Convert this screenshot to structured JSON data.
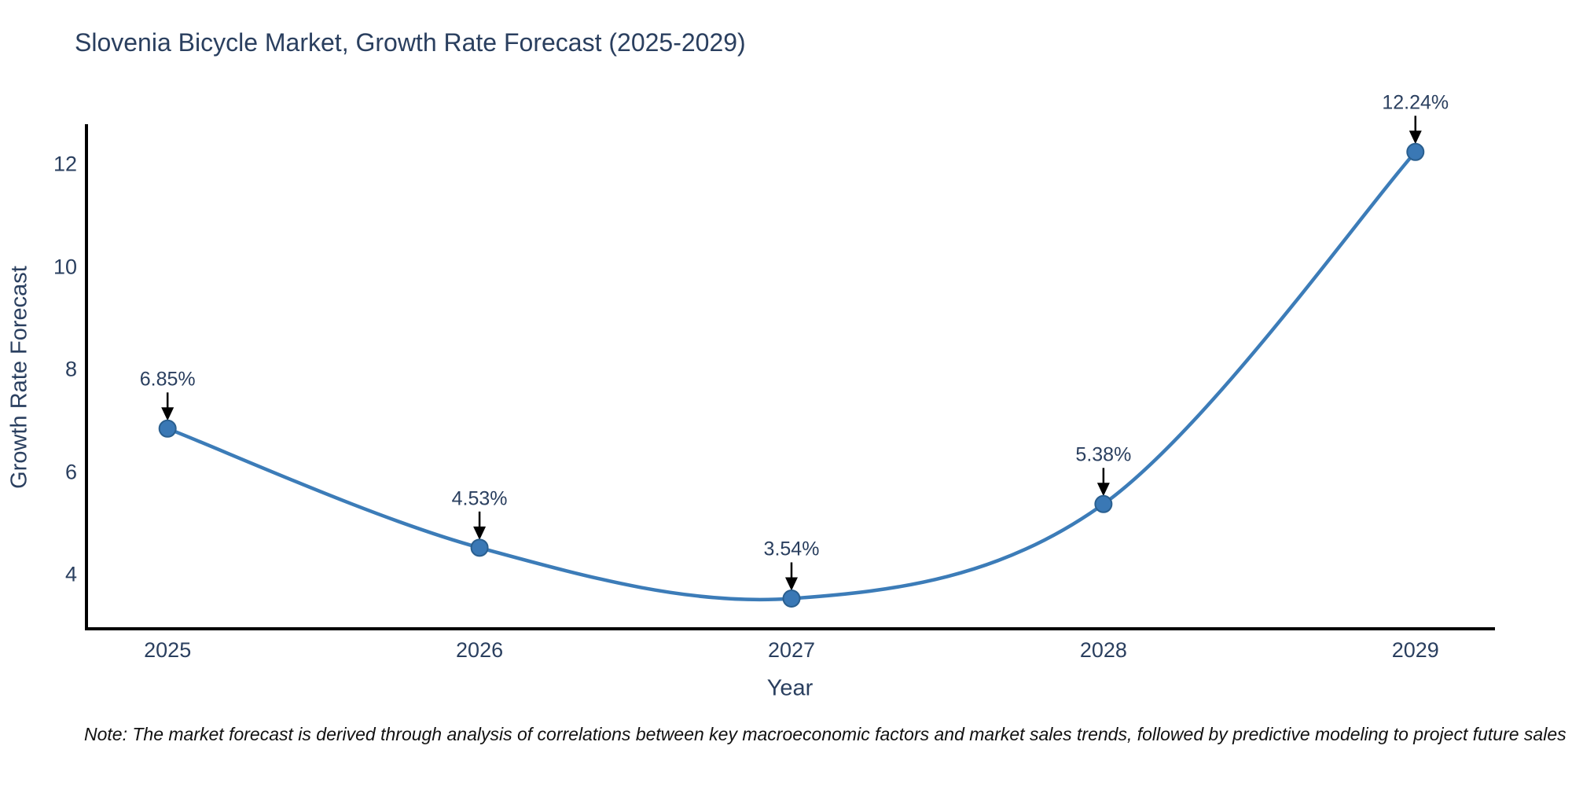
{
  "title": "Slovenia Bicycle Market, Growth Rate Forecast (2025-2029)",
  "note": "Note: The market forecast is derived through analysis of correlations between key macroeconomic factors and market sales trends, followed by predictive modeling to project future sales",
  "chart_data": {
    "type": "line",
    "title": "Slovenia Bicycle Market, Growth Rate Forecast (2025-2029)",
    "xlabel": "Year",
    "ylabel": "Growth Rate Forecast",
    "x": [
      2025,
      2026,
      2027,
      2028,
      2029
    ],
    "values": [
      6.85,
      4.53,
      3.54,
      5.38,
      12.24
    ],
    "point_labels": [
      "6.85%",
      "4.53%",
      "3.54%",
      "5.38%",
      "12.24%"
    ],
    "x_tick_labels": [
      "2025",
      "2026",
      "2027",
      "2028",
      "2029"
    ],
    "x_tick_values": [
      2025,
      2026,
      2027,
      2028,
      2029
    ],
    "y_tick_labels": [
      "4",
      "6",
      "8",
      "10",
      "12"
    ],
    "y_tick_values": [
      4,
      6,
      8,
      10,
      12
    ],
    "x_range": [
      2024.74,
      2029.25
    ],
    "y_range": [
      2.95,
      12.75
    ],
    "line_shape": "spline",
    "grid": false,
    "legend_position": "none",
    "annotations_have_arrows": true,
    "colors": {
      "line": "#3c7cb8",
      "marker_fill": "#3a78b5",
      "marker_edge": "#2a5f8f",
      "axis_line": "#000000",
      "tick_text": "#2a3f5f",
      "title_text": "#2a3f5f",
      "annotation_text": "#2a3f5f",
      "annotation_arrow": "#000000",
      "note_text": "#111111",
      "background": "#ffffff"
    }
  }
}
